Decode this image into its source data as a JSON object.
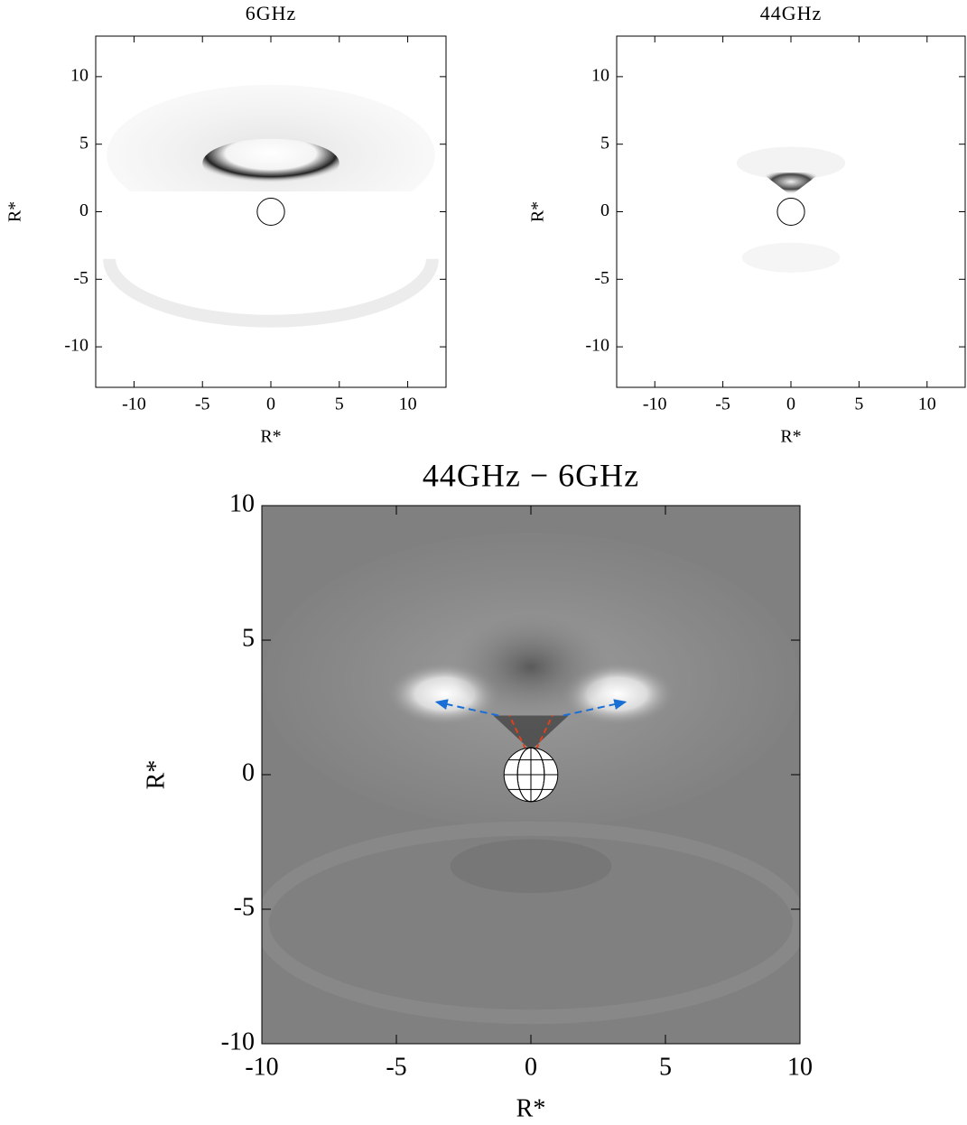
{
  "chart_data": [
    {
      "type": "image",
      "title": "6GHz",
      "xlabel": "R*",
      "ylabel": "R*",
      "xlim": [
        -12.8,
        12.8
      ],
      "ylim": [
        -13,
        13
      ],
      "xticks": [
        -10,
        -5,
        0,
        5,
        10
      ],
      "yticks": [
        -10,
        -5,
        0,
        5,
        10
      ]
    },
    {
      "type": "image",
      "title": "44GHz",
      "xlabel": "R*",
      "ylabel": "R*",
      "xlim": [
        -12.8,
        12.8
      ],
      "ylim": [
        -13,
        13
      ],
      "xticks": [
        -10,
        -5,
        0,
        5,
        10
      ],
      "yticks": [
        -10,
        -5,
        0,
        5,
        10
      ]
    },
    {
      "type": "image",
      "title": "44GHz − 6GHz",
      "xlabel": "R*",
      "ylabel": "R*",
      "xlim": [
        -10,
        10
      ],
      "ylim": [
        -10,
        10
      ],
      "xticks": [
        -10,
        -5,
        0,
        5,
        10
      ],
      "yticks": [
        -10,
        -5,
        0,
        5,
        10
      ]
    }
  ]
}
